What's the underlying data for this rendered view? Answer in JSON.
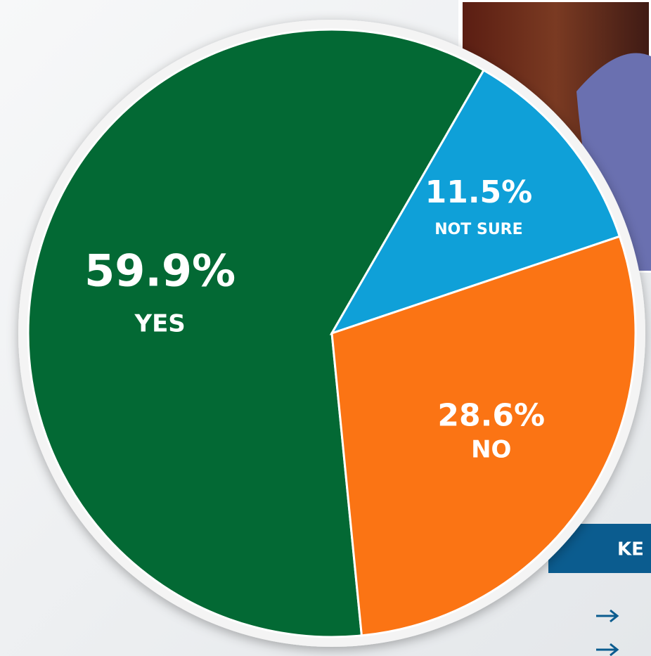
{
  "chart_data": {
    "type": "pie",
    "categories": [
      "YES",
      "NOT SURE",
      "NO"
    ],
    "values": [
      59.9,
      11.5,
      28.6
    ],
    "value_labels": [
      "59.9%",
      "11.5%",
      "28.6%"
    ],
    "colors": [
      "#036934",
      "#0fa0d8",
      "#fb7414"
    ]
  },
  "panel": {
    "title": "KE"
  }
}
